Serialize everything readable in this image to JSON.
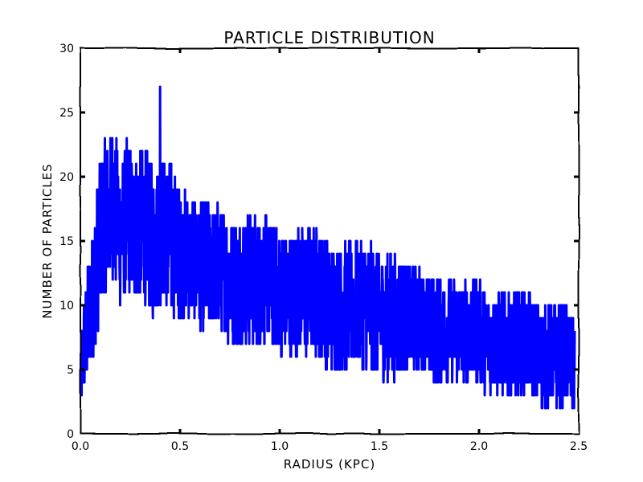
{
  "chart_data": {
    "type": "line",
    "title": "PARTICLE DISTRIBUTION",
    "xlabel": "RADIUS (KPC)",
    "ylabel": "NUMBER OF PARTICLES",
    "xlim": [
      0.0,
      2.5
    ],
    "ylim": [
      0,
      30
    ],
    "xticks": [
      {
        "value": 0.0,
        "label": "0.0"
      },
      {
        "value": 0.5,
        "label": "0.5"
      },
      {
        "value": 1.0,
        "label": "1.0"
      },
      {
        "value": 1.5,
        "label": "1.5"
      },
      {
        "value": 2.0,
        "label": "2.0"
      },
      {
        "value": 2.5,
        "label": "2.5"
      }
    ],
    "yticks": [
      {
        "value": 0,
        "label": "0"
      },
      {
        "value": 5,
        "label": "5"
      },
      {
        "value": 10,
        "label": "10"
      },
      {
        "value": 15,
        "label": "15"
      },
      {
        "value": 20,
        "label": "20"
      },
      {
        "value": 25,
        "label": "25"
      },
      {
        "value": 30,
        "label": "30"
      }
    ],
    "grid": false,
    "series": [
      {
        "color": "#0000ff",
        "x": [
          0.0,
          0.02,
          0.04,
          0.06,
          0.08,
          0.1,
          0.12,
          0.14,
          0.16,
          0.18,
          0.2,
          0.22,
          0.24,
          0.26,
          0.28,
          0.3,
          0.32,
          0.34,
          0.36,
          0.38,
          0.4,
          0.42,
          0.44,
          0.46,
          0.48,
          0.5,
          0.55,
          0.6,
          0.65,
          0.7,
          0.75,
          0.8,
          0.85,
          0.9,
          0.95,
          1.0,
          1.05,
          1.1,
          1.15,
          1.2,
          1.25,
          1.3,
          1.35,
          1.4,
          1.45,
          1.5,
          1.55,
          1.6,
          1.65,
          1.7,
          1.75,
          1.8,
          1.85,
          1.9,
          1.95,
          2.0,
          2.05,
          2.1,
          2.15,
          2.2,
          2.25,
          2.3,
          2.35,
          2.4,
          2.45,
          2.48
        ],
        "y": [
          4,
          7,
          9,
          11,
          13,
          15,
          17,
          17,
          18,
          17,
          16,
          16,
          17,
          16,
          16,
          16,
          16,
          16,
          15,
          15,
          16,
          16,
          15,
          15,
          14,
          14,
          14,
          13,
          13,
          13,
          12,
          12,
          12,
          12,
          12,
          11,
          11,
          11,
          11,
          11,
          10,
          10,
          10,
          10,
          10,
          9,
          9,
          9,
          9,
          9,
          8,
          8,
          8,
          8,
          8,
          8,
          7,
          7,
          7,
          7,
          7,
          6,
          6,
          6,
          6,
          5
        ],
        "spread": [
          3,
          4,
          5,
          5,
          6,
          6,
          6,
          6,
          6,
          6,
          6,
          6,
          6,
          6,
          6,
          6,
          6,
          6,
          6,
          6,
          6,
          6,
          6,
          6,
          6,
          5,
          5,
          5,
          5,
          5,
          5,
          5,
          5,
          5,
          5,
          5,
          5,
          5,
          5,
          5,
          5,
          5,
          5,
          5,
          5,
          5,
          5,
          5,
          4,
          4,
          4,
          4,
          4,
          4,
          4,
          4,
          4,
          4,
          4,
          4,
          4,
          4,
          4,
          4,
          4,
          4
        ],
        "peak": {
          "x": 0.4,
          "y": 27
        }
      }
    ]
  }
}
